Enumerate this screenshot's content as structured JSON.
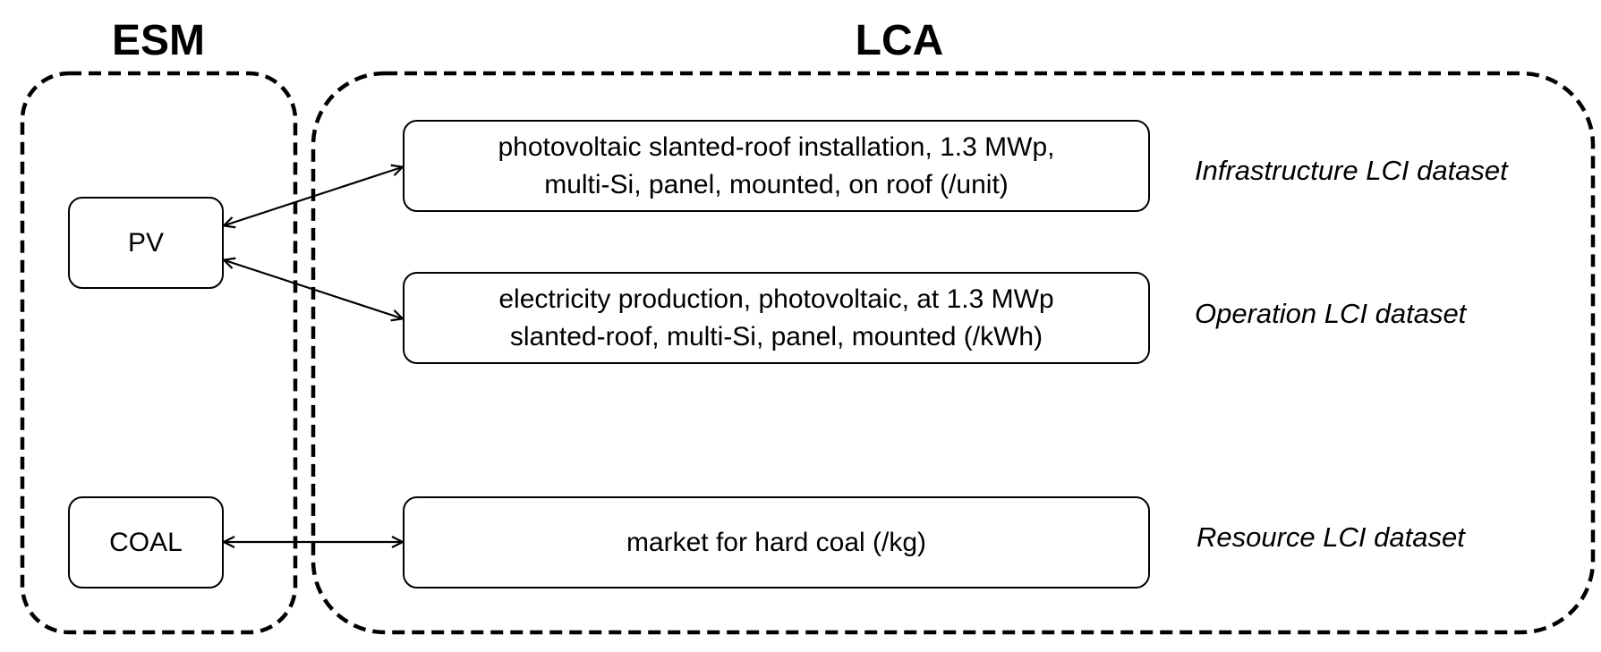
{
  "groups": {
    "esm": {
      "title": "ESM"
    },
    "lca": {
      "title": "LCA"
    }
  },
  "esm_nodes": {
    "pv": "PV",
    "coal": "COAL"
  },
  "lca_nodes": {
    "infrastructure": {
      "line1": "photovoltaic slanted-roof installation, 1.3 MWp,",
      "line2": "multi-Si, panel, mounted, on roof (/unit)"
    },
    "operation": {
      "line1": "electricity production, photovoltaic, at 1.3 MWp",
      "line2": "slanted-roof, multi-Si, panel, mounted (/kWh)"
    },
    "resource": {
      "line1": "market for hard coal (/kg)"
    }
  },
  "dataset_labels": {
    "infrastructure": "Infrastructure LCI dataset",
    "operation": "Operation LCI dataset",
    "resource": "Resource LCI dataset"
  }
}
